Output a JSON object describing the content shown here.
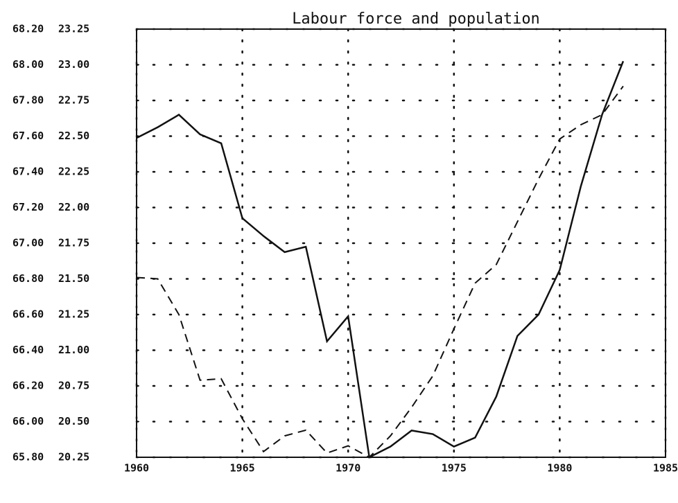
{
  "chart_data": {
    "type": "line",
    "title": "Labour force and population",
    "x": [
      1960,
      1961,
      1962,
      1963,
      1964,
      1965,
      1966,
      1967,
      1968,
      1969,
      1970,
      1971,
      1972,
      1973,
      1974,
      1975,
      1976,
      1977,
      1978,
      1979,
      1980,
      1981,
      1982,
      1983
    ],
    "series": [
      {
        "color": "#111111",
        "style": "solid",
        "axis": "y",
        "values": [
          67.59,
          67.65,
          67.72,
          67.61,
          67.56,
          67.14,
          67.04,
          66.95,
          66.98,
          66.45,
          66.59,
          65.8,
          65.86,
          65.95,
          65.93,
          65.86,
          65.91,
          66.14,
          66.48,
          66.6,
          66.85,
          67.32,
          67.72,
          68.02
        ]
      },
      {
        "color": "#111111",
        "style": "dashed",
        "axis": "y2",
        "values": [
          21.51,
          21.5,
          21.25,
          20.79,
          20.8,
          20.52,
          20.29,
          20.4,
          20.44,
          20.28,
          20.33,
          20.25,
          20.4,
          20.6,
          20.82,
          21.15,
          21.47,
          21.6,
          21.9,
          22.2,
          22.48,
          22.58,
          22.65,
          22.85
        ]
      }
    ],
    "xlim": [
      1960,
      1985
    ],
    "xticks": [
      1960,
      1965,
      1970,
      1975,
      1980,
      1985
    ],
    "ylim": [
      65.8,
      68.2
    ],
    "yticks": [
      {
        "value": 65.8,
        "label": "65.80"
      },
      {
        "value": 66.0,
        "label": "66.00"
      },
      {
        "value": 66.2,
        "label": "66.20"
      },
      {
        "value": 66.4,
        "label": "66.40"
      },
      {
        "value": 66.6,
        "label": "66.60"
      },
      {
        "value": 66.8,
        "label": "66.80"
      },
      {
        "value": 67.0,
        "label": "67.00"
      },
      {
        "value": 67.2,
        "label": "67.20"
      },
      {
        "value": 67.4,
        "label": "67.40"
      },
      {
        "value": 67.6,
        "label": "67.60"
      },
      {
        "value": 67.8,
        "label": "67.80"
      },
      {
        "value": 68.0,
        "label": "68.00"
      },
      {
        "value": 68.2,
        "label": "68.20"
      }
    ],
    "y2lim": [
      20.25,
      23.25
    ],
    "y2ticks": [
      20.25,
      {
        "value": 20.5,
        "label": "20.50"
      },
      20.75,
      {
        "value": 21.0,
        "label": "21.00"
      },
      21.25,
      {
        "value": 21.5,
        "label": "21.50"
      },
      21.75,
      {
        "value": 22.0,
        "label": "22.00"
      },
      22.25,
      {
        "value": 22.5,
        "label": "22.50"
      },
      22.75,
      {
        "value": 23.0,
        "label": "23.00"
      },
      23.25
    ],
    "grid": true
  }
}
